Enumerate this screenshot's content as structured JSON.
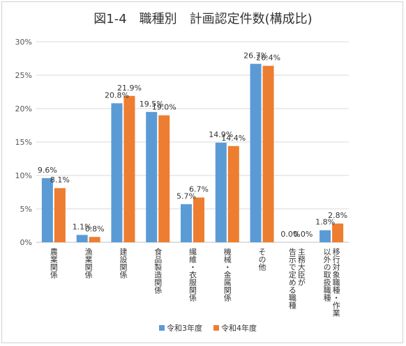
{
  "chart_data": {
    "type": "bar",
    "title": "図1-4　職種別　計画認定件数(構成比)",
    "categories": [
      "農業関係",
      "漁業関係",
      "建設関係",
      "食品製造関係",
      "繊維・衣服関係",
      "機械・金属関係",
      "その他",
      "主務大臣が告示で定める職種",
      "移行対象職種・作業以外の取扱職種"
    ],
    "category_lines": [
      [
        "農業関係"
      ],
      [
        "漁業関係"
      ],
      [
        "建設関係"
      ],
      [
        "食品製造関係"
      ],
      [
        "繊維・衣服関係"
      ],
      [
        "機械・金属関係"
      ],
      [
        "その他"
      ],
      [
        "主務大臣が",
        "告示で定める職種"
      ],
      [
        "移行対象職種・作業",
        "以外の取扱職種"
      ]
    ],
    "series": [
      {
        "name": "令和3年度",
        "color": "#5B9BD5",
        "values": [
          9.6,
          1.1,
          20.8,
          19.5,
          5.7,
          14.9,
          26.7,
          0.0,
          1.8
        ],
        "labels": [
          "9.6%",
          "1.1%",
          "20.8%",
          "19.5%",
          "5.7%",
          "14.9%",
          "26.7%",
          "0.0%",
          "1.8%"
        ]
      },
      {
        "name": "令和4年度",
        "color": "#ED7D31",
        "values": [
          8.1,
          0.8,
          21.9,
          19.0,
          6.7,
          14.4,
          26.4,
          0.0,
          2.8
        ],
        "labels": [
          "8.1%",
          "0.8%",
          "21.9%",
          "19.0%",
          "6.7%",
          "14.4%",
          "26.4%",
          "0.0%",
          "2.8%"
        ]
      }
    ],
    "y_ticks": [
      "0%",
      "5%",
      "10%",
      "15%",
      "20%",
      "25%",
      "30%"
    ],
    "ylim": [
      0,
      30
    ],
    "grid": true,
    "legend_position": "bottom"
  }
}
